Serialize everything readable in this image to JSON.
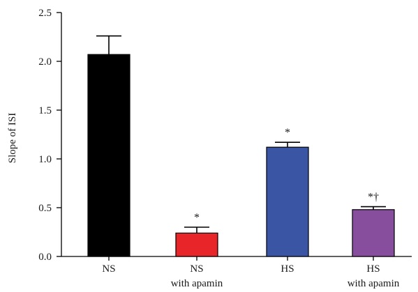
{
  "chart_data": {
    "type": "bar",
    "title": "",
    "xlabel": "",
    "ylabel": "Slope of ISI",
    "ylim": [
      0,
      2.5
    ],
    "yticks": [
      "0.0",
      "0.5",
      "1.0",
      "1.5",
      "2.0",
      "2.5"
    ],
    "categories": [
      {
        "line1": "NS",
        "line2": ""
      },
      {
        "line1": "NS",
        "line2": "with apamin"
      },
      {
        "line1": "HS",
        "line2": ""
      },
      {
        "line1": "HS",
        "line2": "with apamin"
      }
    ],
    "values": [
      2.07,
      0.24,
      1.12,
      0.48
    ],
    "errors": [
      0.19,
      0.06,
      0.05,
      0.03
    ],
    "colors": [
      "#000000",
      "#e8262a",
      "#3a55a4",
      "#874e9e"
    ],
    "annotations": [
      "",
      "*",
      "*",
      "*†"
    ],
    "grid": false,
    "legend": "none"
  }
}
